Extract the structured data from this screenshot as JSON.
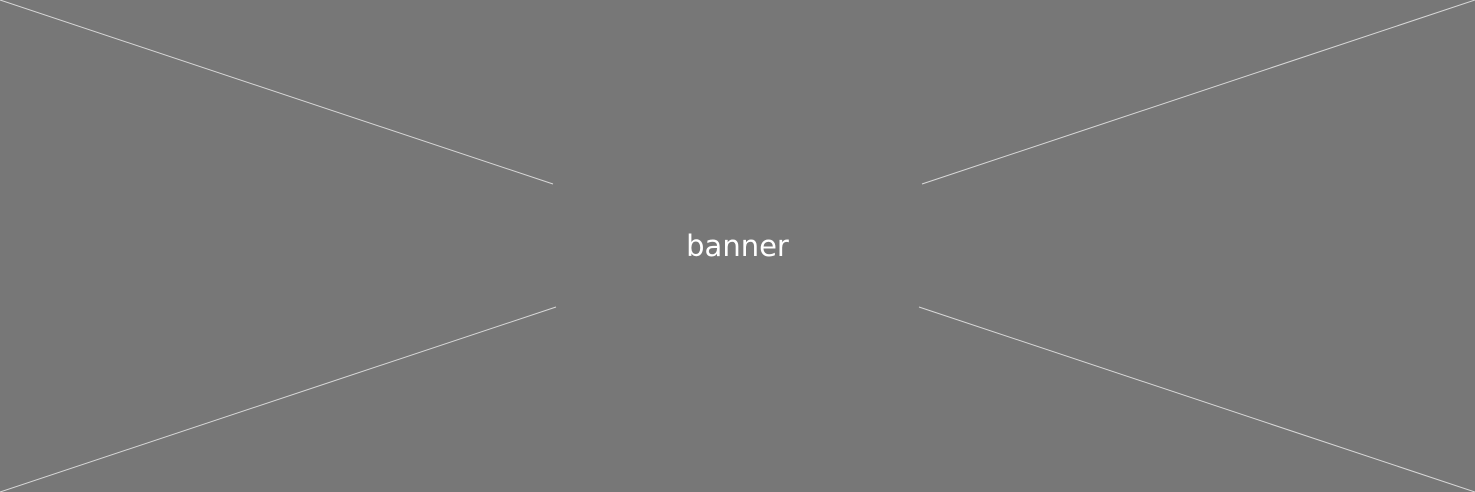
{
  "banner": {
    "label": "banner",
    "background_color": "#777777",
    "line_color": "#d9d9d9",
    "text_color": "#ffffff"
  }
}
